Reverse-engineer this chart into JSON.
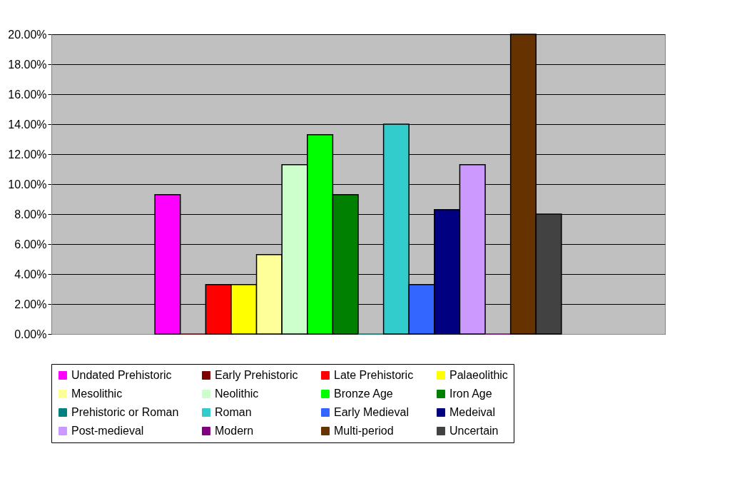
{
  "chart_data": {
    "type": "bar",
    "categories": [
      null
    ],
    "ylim": [
      0,
      20
    ],
    "yticks": [
      {
        "value": 0,
        "label": "0.00%"
      },
      {
        "value": 2,
        "label": "2.00%"
      },
      {
        "value": 4,
        "label": "4.00%"
      },
      {
        "value": 6,
        "label": "6.00%"
      },
      {
        "value": 8,
        "label": "8.00%"
      },
      {
        "value": 10,
        "label": "10.00%"
      },
      {
        "value": 12,
        "label": "12.00%"
      },
      {
        "value": 14,
        "label": "14.00%"
      },
      {
        "value": 16,
        "label": "16.00%"
      },
      {
        "value": 18,
        "label": "18.00%"
      },
      {
        "value": 20,
        "label": "20.00%"
      }
    ],
    "grid": "y",
    "legend": "bottom",
    "series": [
      {
        "name": "Undated Prehistoric",
        "color": "#ff00ff",
        "values": [
          9.3
        ]
      },
      {
        "name": "Early Prehistoric",
        "color": "#800000",
        "values": [
          0
        ]
      },
      {
        "name": "Late Prehistoric",
        "color": "#ff0000",
        "values": [
          3.3
        ]
      },
      {
        "name": "Palaeolithic",
        "color": "#ffff00",
        "values": [
          3.3
        ]
      },
      {
        "name": "Mesolithic",
        "color": "#ffff99",
        "values": [
          5.3
        ]
      },
      {
        "name": "Neolithic",
        "color": "#ccffcc",
        "values": [
          11.3
        ]
      },
      {
        "name": "Bronze Age",
        "color": "#00ff00",
        "values": [
          13.3
        ]
      },
      {
        "name": "Iron Age",
        "color": "#008000",
        "values": [
          9.3
        ]
      },
      {
        "name": "Prehistoric or Roman",
        "color": "#008080",
        "values": [
          0
        ]
      },
      {
        "name": "Roman",
        "color": "#33cccc",
        "values": [
          14.0
        ]
      },
      {
        "name": "Early Medieval",
        "color": "#3366ff",
        "values": [
          3.3
        ]
      },
      {
        "name": "Medeival",
        "color": "#000080",
        "values": [
          8.3
        ]
      },
      {
        "name": "Post-medieval",
        "color": "#cc99ff",
        "values": [
          11.3
        ]
      },
      {
        "name": "Modern",
        "color": "#800080",
        "values": [
          0
        ]
      },
      {
        "name": "Multi-period",
        "color": "#663300",
        "values": [
          20.0
        ]
      },
      {
        "name": "Uncertain",
        "color": "#424242",
        "values": [
          8.0
        ]
      }
    ]
  }
}
